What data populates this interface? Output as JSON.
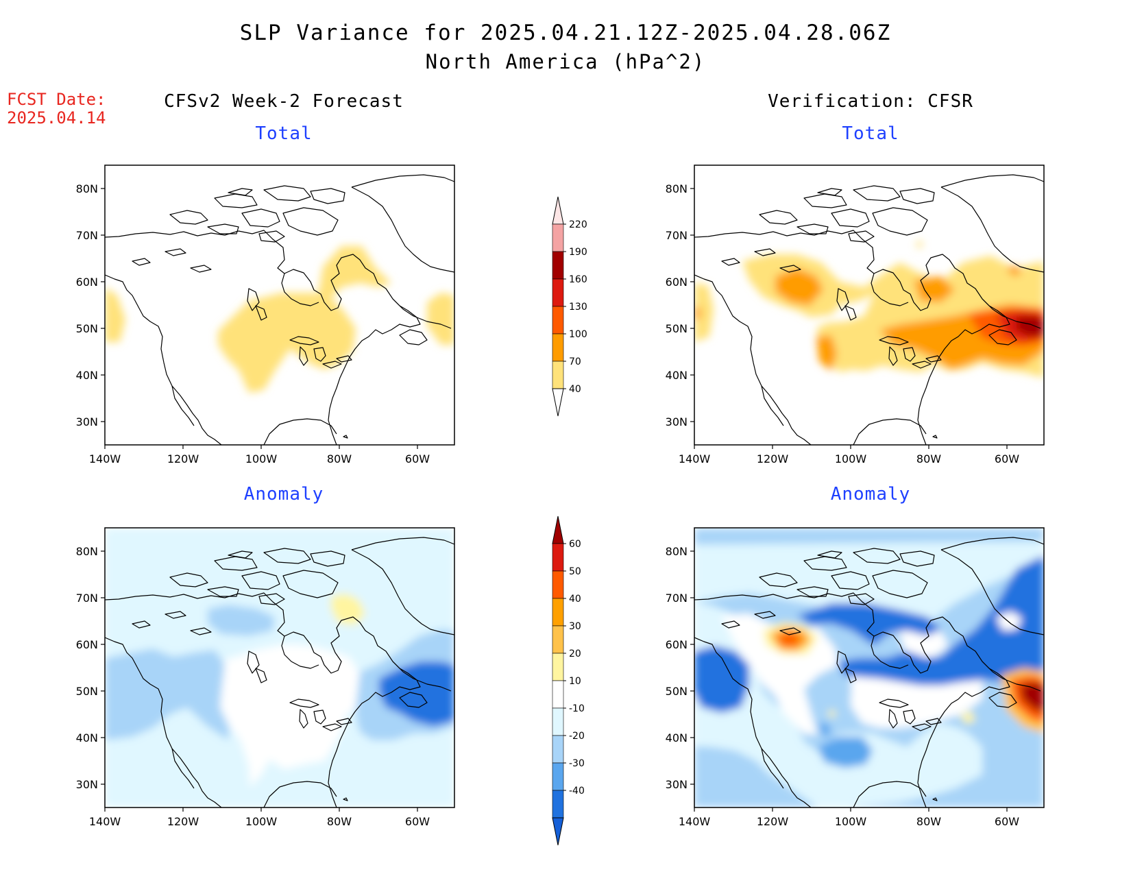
{
  "header": {
    "title": "SLP Variance for 2025.04.21.12Z-2025.04.28.06Z",
    "subtitle": "North America (hPa^2)",
    "fcst_label": "FCST Date:",
    "fcst_date": "2025.04.14"
  },
  "columns": {
    "left": "CFSv2 Week-2 Forecast",
    "right": "Verification: CFSR"
  },
  "panels": [
    {
      "id": "forecast-total",
      "title": "Total"
    },
    {
      "id": "verification-total",
      "title": "Total"
    },
    {
      "id": "forecast-anomaly",
      "title": "Anomaly"
    },
    {
      "id": "verification-anomaly",
      "title": "Anomaly"
    }
  ],
  "axes": {
    "lat_labels": [
      "80N",
      "70N",
      "60N",
      "50N",
      "40N",
      "30N"
    ],
    "lon_labels": [
      "140W",
      "120W",
      "100W",
      "80W",
      "60W"
    ]
  },
  "colorbars": {
    "total": {
      "labels": [
        "220",
        "190",
        "160",
        "130",
        "100",
        "70",
        "40"
      ],
      "colors": [
        "#fde6e6",
        "#f4a3a3",
        "#a10000",
        "#dd1a10",
        "#ff5a00",
        "#ff9c00",
        "#ffe27a"
      ]
    },
    "anomaly": {
      "labels": [
        "60",
        "50",
        "40",
        "30",
        "20",
        "10",
        "-10",
        "-20",
        "-30",
        "-40"
      ],
      "colors": [
        "#a00000",
        "#dc1a10",
        "#ff5a00",
        "#ffa000",
        "#ffc24a",
        "#fff5a0",
        "#ffffff",
        "#e0f7ff",
        "#a8d4f8",
        "#5aa6ee",
        "#2072df",
        "#1560d8"
      ]
    }
  },
  "colors": {
    "title_blue": "#1e40ff",
    "fcst_red": "#e8261f",
    "total_40_70": "#ffe27a",
    "total_70_100": "#ff9c00",
    "total_100_130": "#ff5a00",
    "total_130_160": "#dd1a10",
    "total_160_190": "#a10000",
    "anom_pos_10_20": "#fff5a0",
    "anom_neg_10_20": "#e0f7ff",
    "anom_neg_20_30": "#a8d4f8",
    "anom_neg_30_40": "#5aa6ee",
    "anom_neg_40": "#1560d8",
    "coast": "#000000"
  }
}
